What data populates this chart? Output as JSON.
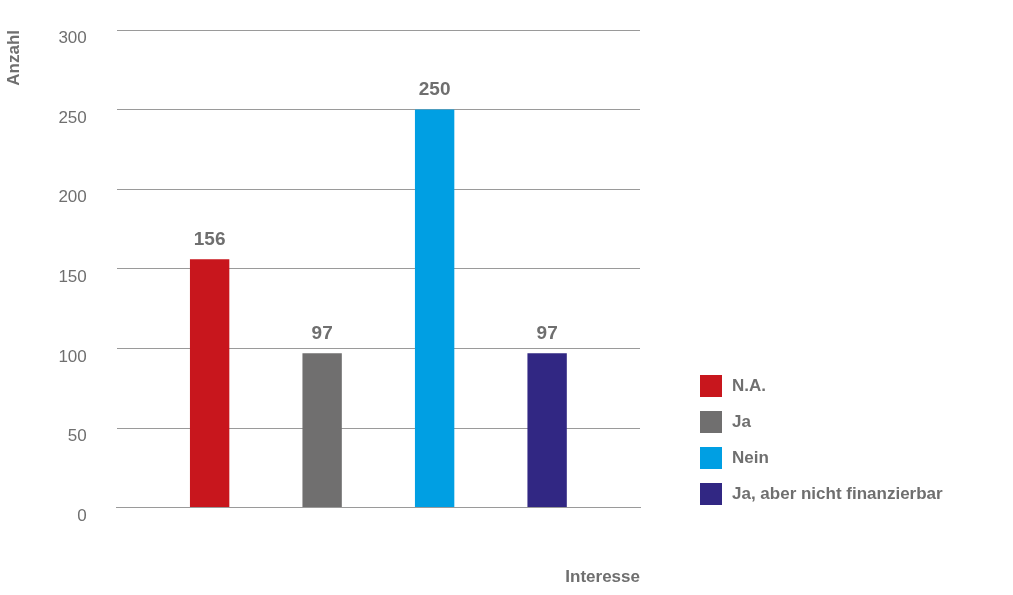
{
  "chart_data": {
    "type": "bar",
    "xlabel": "Interesse",
    "ylabel": "Anzahl",
    "categories": [
      null
    ],
    "series": [
      {
        "name": "N.A.",
        "color": "#c8161d",
        "values": [
          156
        ]
      },
      {
        "name": "Ja",
        "color": "#706f6f",
        "values": [
          97
        ]
      },
      {
        "name": "Nein",
        "color": "#009fe3",
        "values": [
          250
        ]
      },
      {
        "name": "Ja, aber nicht finanzierbar",
        "color": "#312783",
        "values": [
          97
        ]
      }
    ],
    "ylim": [
      0,
      300
    ],
    "yticks": [
      0,
      50,
      100,
      150,
      200,
      250,
      300
    ],
    "grid": "y",
    "legend": "bottom right",
    "data_labels": true,
    "tick_labels": "y"
  }
}
